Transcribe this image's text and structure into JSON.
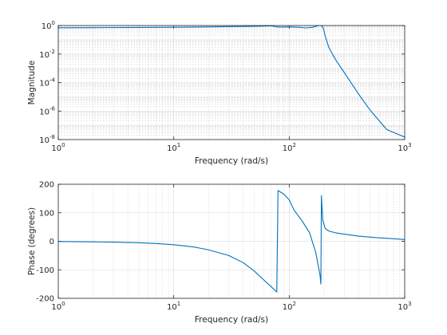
{
  "chart_data": [
    {
      "type": "line",
      "title": "",
      "xlabel": "Frequency (rad/s)",
      "ylabel": "Magnitude",
      "xscale": "log",
      "yscale": "log",
      "xlim": [
        1,
        1000
      ],
      "ylim": [
        1e-08,
        1
      ],
      "grid": true,
      "xticks": [
        1,
        10,
        100,
        1000
      ],
      "xtick_labels": [
        {
          "base": "10",
          "exp": "0"
        },
        {
          "base": "10",
          "exp": "1"
        },
        {
          "base": "10",
          "exp": "2"
        },
        {
          "base": "10",
          "exp": "3"
        }
      ],
      "yticks": [
        1e-08,
        1e-06,
        0.0001,
        0.01,
        1
      ],
      "ytick_labels": [
        {
          "base": "10",
          "exp": "-8"
        },
        {
          "base": "10",
          "exp": "-6"
        },
        {
          "base": "10",
          "exp": "-4"
        },
        {
          "base": "10",
          "exp": "-2"
        },
        {
          "base": "10",
          "exp": "0"
        }
      ],
      "color": "#0072bd",
      "series": [
        {
          "x": [
            1,
            2,
            5,
            10,
            20,
            40,
            60,
            70,
            78,
            85,
            100,
            120,
            140,
            160,
            175,
            185,
            192,
            198,
            205,
            220,
            250,
            300,
            400,
            500,
            700,
            1000
          ],
          "y": [
            0.7,
            0.71,
            0.73,
            0.75,
            0.8,
            0.86,
            0.92,
            0.96,
            0.8,
            0.78,
            0.8,
            0.75,
            0.68,
            0.75,
            0.95,
            1.05,
            0.9,
            0.6,
            0.18,
            0.03,
            0.0045,
            0.0005,
            1.5e-05,
            1.2e-06,
            5e-08,
            1.5e-08
          ]
        }
      ]
    },
    {
      "type": "line",
      "title": "",
      "xlabel": "Frequency (rad/s)",
      "ylabel": "Phase (degrees)",
      "xscale": "log",
      "yscale": "linear",
      "xlim": [
        1,
        1000
      ],
      "ylim": [
        -200,
        200
      ],
      "grid": true,
      "xticks": [
        1,
        10,
        100,
        1000
      ],
      "xtick_labels": [
        {
          "base": "10",
          "exp": "0"
        },
        {
          "base": "10",
          "exp": "1"
        },
        {
          "base": "10",
          "exp": "2"
        },
        {
          "base": "10",
          "exp": "3"
        }
      ],
      "yticks": [
        -200,
        -100,
        0,
        100,
        200
      ],
      "ytick_labels": [
        "-200",
        "-100",
        "0",
        "100",
        "200"
      ],
      "color": "#0072bd",
      "series": [
        {
          "x": [
            1,
            2,
            3,
            5,
            7,
            10,
            15,
            20,
            30,
            40,
            50,
            60,
            70,
            78,
            79,
            80,
            90,
            100,
            110,
            130,
            150,
            170,
            185,
            188,
            189,
            190,
            195,
            205,
            220,
            250,
            300,
            400,
            600,
            800,
            1000
          ],
          "y": [
            -1,
            -2,
            -3,
            -5,
            -8,
            -12,
            -20,
            -30,
            -50,
            -75,
            -105,
            -135,
            -160,
            -178,
            0,
            178,
            165,
            145,
            110,
            70,
            30,
            -40,
            -120,
            -150,
            0,
            160,
            75,
            45,
            36,
            30,
            25,
            18,
            12,
            9,
            6
          ]
        }
      ]
    }
  ]
}
